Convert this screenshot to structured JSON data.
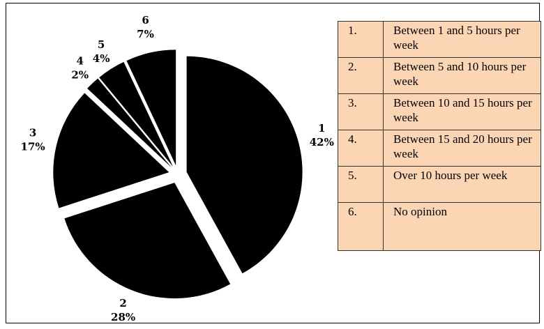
{
  "chart_data": {
    "type": "pie",
    "categories": [
      "1",
      "2",
      "3",
      "4",
      "5",
      "6"
    ],
    "values": [
      42,
      28,
      17,
      2,
      4,
      7
    ],
    "value_labels": [
      "42%",
      "28%",
      "17%",
      "2%",
      "4%",
      "7%"
    ],
    "color": "#000000",
    "legend_table": {
      "rows": [
        [
          "1.",
          "Between 1 and 5 hours per week"
        ],
        [
          "2.",
          "Between 5 and 10 hours per week"
        ],
        [
          "3.",
          "Between 10 and 15 hours per week"
        ],
        [
          "4.",
          "Between 15 and 20 hours per week"
        ],
        [
          "5.",
          "Over 10 hours per week"
        ],
        [
          "6.",
          "No opinion"
        ]
      ]
    }
  }
}
